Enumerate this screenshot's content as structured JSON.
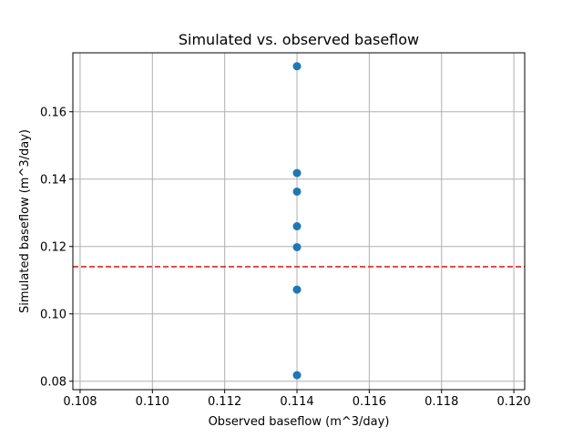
{
  "chart_data": {
    "type": "scatter",
    "title": "Simulated vs. observed baseflow",
    "xlabel": "Observed baseflow (m^3/day)",
    "ylabel": "Simulated baseflow (m^3/day)",
    "xlim": [
      0.1078,
      0.1203
    ],
    "ylim": [
      0.0775,
      0.1775
    ],
    "x_ticks": [
      0.108,
      0.11,
      0.112,
      0.114,
      0.116,
      0.118,
      0.12
    ],
    "x_tick_labels": [
      "0.108",
      "0.110",
      "0.112",
      "0.114",
      "0.116",
      "0.118",
      "0.120"
    ],
    "y_ticks": [
      0.08,
      0.1,
      0.12,
      0.14,
      0.16
    ],
    "y_tick_labels": [
      "0.08",
      "0.10",
      "0.12",
      "0.14",
      "0.16"
    ],
    "grid": true,
    "points": [
      {
        "x": 0.114,
        "y": 0.1735
      },
      {
        "x": 0.114,
        "y": 0.1418
      },
      {
        "x": 0.114,
        "y": 0.1363
      },
      {
        "x": 0.114,
        "y": 0.126
      },
      {
        "x": 0.114,
        "y": 0.1198
      },
      {
        "x": 0.114,
        "y": 0.1072
      },
      {
        "x": 0.114,
        "y": 0.0818
      }
    ],
    "reference_line": {
      "orientation": "horizontal",
      "y": 0.114,
      "style": "dashed"
    },
    "colors": {
      "points": "#1f77b4",
      "reference_line": "#d62728",
      "grid": "#b0b0b0",
      "axes": "#000000"
    }
  }
}
